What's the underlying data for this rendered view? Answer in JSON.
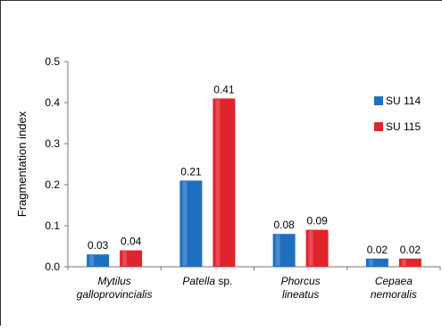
{
  "chart_data": {
    "type": "bar",
    "categories": [
      {
        "italic": "Mytilus",
        "italic2": "galloprovincialis",
        "normal": ""
      },
      {
        "italic": "Patella",
        "normal": " sp."
      },
      {
        "italic": "Phorcus",
        "italic2": "lineatus",
        "normal": ""
      },
      {
        "italic": "Cepaea",
        "italic2": "nemoralis",
        "normal": ""
      }
    ],
    "series": [
      {
        "name": "SU 114",
        "color": "#1f6fc1",
        "values": [
          0.03,
          0.21,
          0.08,
          0.02
        ],
        "labels": [
          "0.03",
          "0.21",
          "0.08",
          "0.02"
        ]
      },
      {
        "name": "SU 115",
        "color": "#e0242c",
        "values": [
          0.04,
          0.41,
          0.09,
          0.02
        ],
        "labels": [
          "0.04",
          "0.41",
          "0.09",
          "0.02"
        ]
      }
    ],
    "ylabel": "Fragmentation index",
    "ylim": [
      0,
      0.5
    ],
    "yticks": [
      "0.0",
      "0.1",
      "0.2",
      "0.3",
      "0.4",
      "0.5"
    ],
    "grid": false,
    "legend_position": "right"
  }
}
